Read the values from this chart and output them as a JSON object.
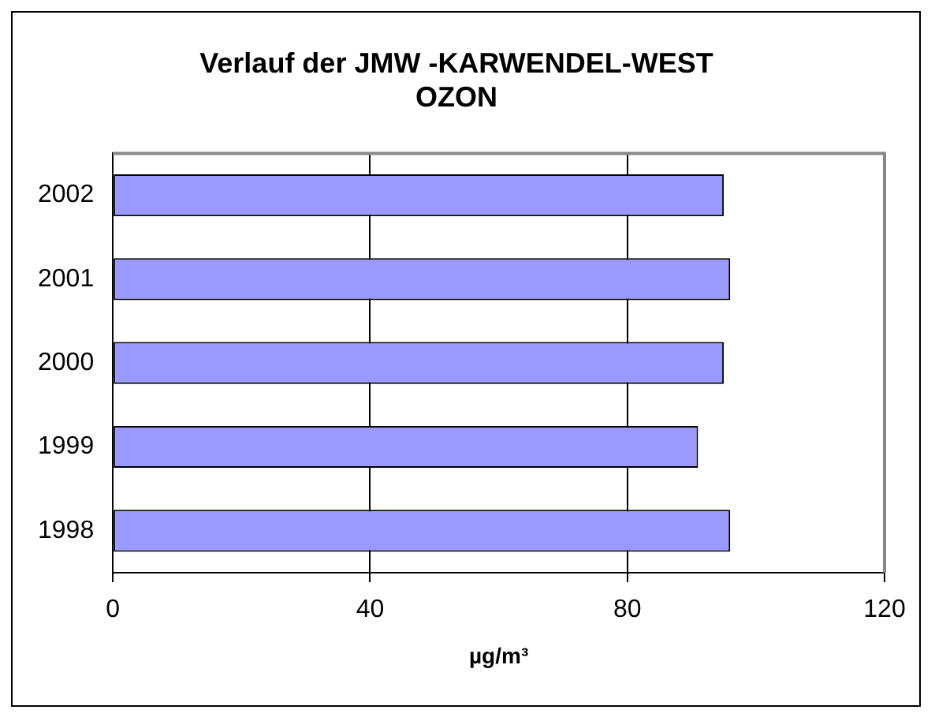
{
  "chart_data": {
    "type": "bar",
    "orientation": "horizontal",
    "title": [
      "Verlauf der JMW -KARWENDEL-WEST",
      "OZON"
    ],
    "xlabel": "µg/m³",
    "categories": [
      "2002",
      "2001",
      "2000",
      "1999",
      "1998"
    ],
    "values": [
      95,
      96,
      95,
      91,
      96
    ],
    "color": "#9999ff",
    "xlim": [
      0,
      120
    ],
    "xticks": [
      0,
      40,
      80,
      120
    ],
    "grid": "x"
  }
}
